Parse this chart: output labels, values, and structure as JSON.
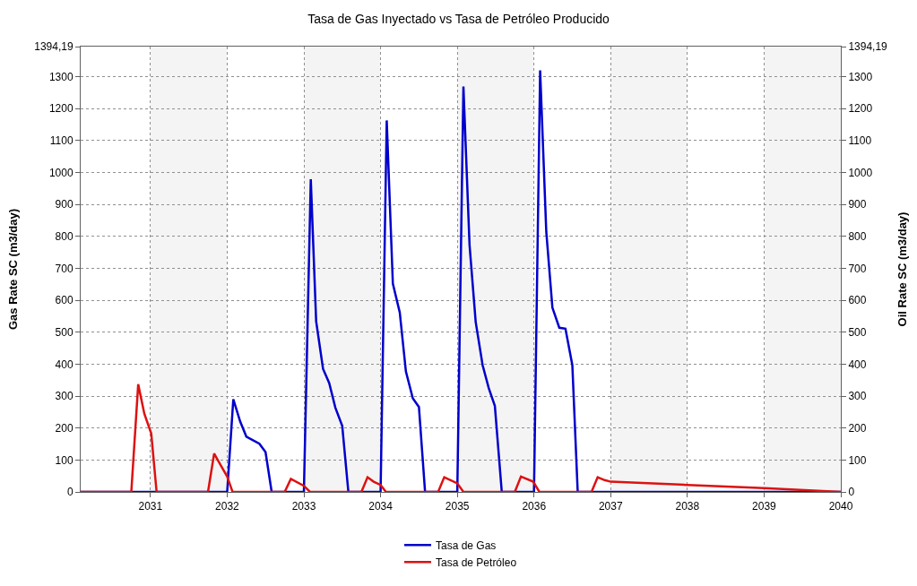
{
  "chart_data": {
    "type": "line",
    "title": "Tasa de Gas Inyectado vs Tasa de Petróleo Producido",
    "ylabel": "Gas Rate SC (m3/day)",
    "y2label": "Oil Rate SC (m3/day)",
    "series": [
      {
        "name": "Tasa de Gas",
        "color": "#0000cc",
        "x": [
          2030.09,
          2032.0,
          2032.08,
          2032.17,
          2032.25,
          2032.42,
          2032.5,
          2032.58,
          2033.0,
          2033.09,
          2033.16,
          2033.25,
          2033.33,
          2033.41,
          2033.5,
          2033.58,
          2034.0,
          2034.08,
          2034.16,
          2034.25,
          2034.33,
          2034.42,
          2034.5,
          2034.58,
          2035.0,
          2035.08,
          2035.16,
          2035.24,
          2035.33,
          2035.41,
          2035.49,
          2035.58,
          2036.0,
          2036.08,
          2036.16,
          2036.24,
          2036.33,
          2036.41,
          2036.5,
          2036.57,
          2040.0
        ],
        "values": [
          0,
          0,
          290,
          220,
          173,
          151,
          125,
          0,
          0,
          979,
          534,
          385,
          341,
          264,
          207,
          0,
          0,
          1163,
          652,
          562,
          377,
          293,
          266,
          0,
          0,
          1269,
          772,
          532,
          397,
          325,
          269,
          0,
          0,
          1320,
          815,
          577,
          514,
          511,
          397,
          0,
          0
        ]
      },
      {
        "name": "Tasa de Petróleo",
        "color": "#dd1111",
        "axis": "y2",
        "x": [
          2030.09,
          2030.75,
          2030.84,
          2030.92,
          2031.01,
          2031.08,
          2031.75,
          2031.83,
          2031.92,
          2032.0,
          2032.07,
          2032.75,
          2032.83,
          2033.0,
          2033.08,
          2033.75,
          2033.83,
          2033.91,
          2034.0,
          2034.07,
          2034.75,
          2034.83,
          2035.0,
          2035.08,
          2035.75,
          2035.83,
          2035.99,
          2036.07,
          2036.75,
          2036.83,
          2036.92,
          2037.0,
          2038.0,
          2039.0,
          2040.0
        ],
        "values": [
          0,
          0,
          337,
          245,
          183,
          0,
          0,
          120,
          82,
          48,
          0,
          0,
          41,
          19,
          0,
          0,
          46,
          32,
          22,
          0,
          0,
          46,
          27,
          0,
          0,
          48,
          32,
          0,
          0,
          46,
          37,
          32,
          22,
          12,
          0
        ]
      }
    ],
    "xlim": [
      2030.09,
      2040
    ],
    "xticks": [
      2031,
      2032,
      2033,
      2034,
      2035,
      2036,
      2037,
      2038,
      2039,
      2040
    ],
    "ylim": [
      0,
      1394.19
    ],
    "yticks": [
      0,
      100,
      200,
      300,
      400,
      500,
      600,
      700,
      800,
      900,
      1000,
      1100,
      1200,
      1300,
      {
        "value": 1394.19,
        "label": "1394,19"
      }
    ],
    "y2lim": [
      0,
      1394.19
    ],
    "y2ticks": [
      0,
      100,
      200,
      300,
      400,
      500,
      600,
      700,
      800,
      900,
      1000,
      1100,
      1200,
      1300,
      {
        "value": 1394.19,
        "label": "1394,19"
      }
    ],
    "bands": [
      {
        "axis": "x",
        "from": 2031,
        "to": 2032,
        "color": "#f4f4f4"
      },
      {
        "axis": "x",
        "from": 2033,
        "to": 2034,
        "color": "#f4f4f4"
      },
      {
        "axis": "x",
        "from": 2035,
        "to": 2036,
        "color": "#f4f4f4"
      },
      {
        "axis": "x",
        "from": 2037,
        "to": 2038,
        "color": "#f4f4f4"
      },
      {
        "axis": "x",
        "from": 2039,
        "to": 2040,
        "color": "#f4f4f4"
      }
    ],
    "grid": true,
    "legend": "bottom",
    "marker": "none",
    "line_style": "solid"
  }
}
